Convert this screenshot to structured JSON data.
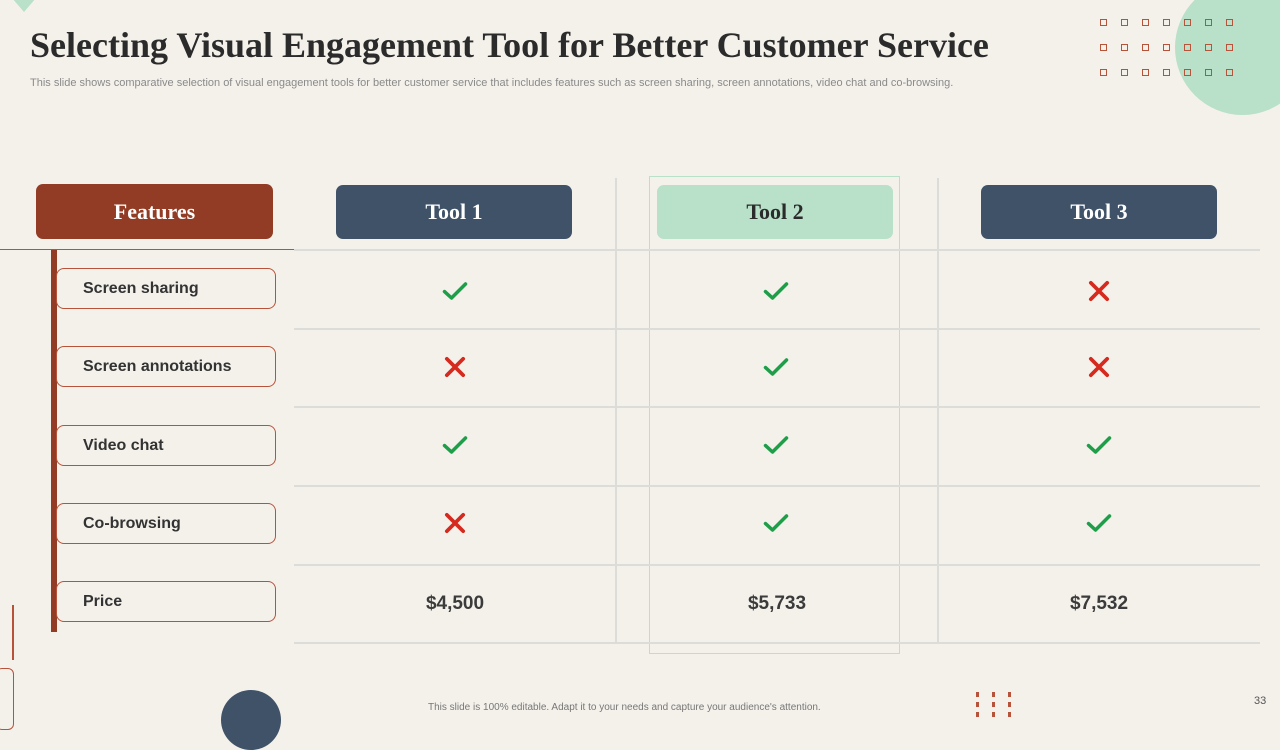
{
  "slide": {
    "title": "Selecting Visual Engagement Tool for Better Customer Service",
    "subtitle": "This slide shows comparative selection of visual engagement tools for better customer service that includes features such as screen sharing, screen annotations, video chat and co-browsing.",
    "footer_note": "This slide is 100% editable. Adapt it to your needs and capture your audience's attention.",
    "page_number": "33"
  },
  "table": {
    "features_header": "Features",
    "tools": [
      "Tool 1",
      "Tool 2",
      "Tool 3"
    ],
    "features": [
      "Screen sharing",
      "Screen annotations",
      "Video chat",
      "Co-browsing",
      "Price"
    ],
    "availability": [
      [
        "check",
        "check",
        "cross"
      ],
      [
        "cross",
        "check",
        "cross"
      ],
      [
        "check",
        "check",
        "check"
      ],
      [
        "cross",
        "check",
        "check"
      ]
    ],
    "prices": [
      "$4,500",
      "$5,733",
      "$7,532"
    ]
  },
  "colors": {
    "background": "#f4f1eb",
    "brown": "#923c25",
    "navy": "#3f5268",
    "mint": "#b9e0c8",
    "check": "#1f9e4a",
    "cross": "#d62a1e"
  },
  "icons": {
    "check": "check-icon",
    "cross": "cross-icon"
  }
}
